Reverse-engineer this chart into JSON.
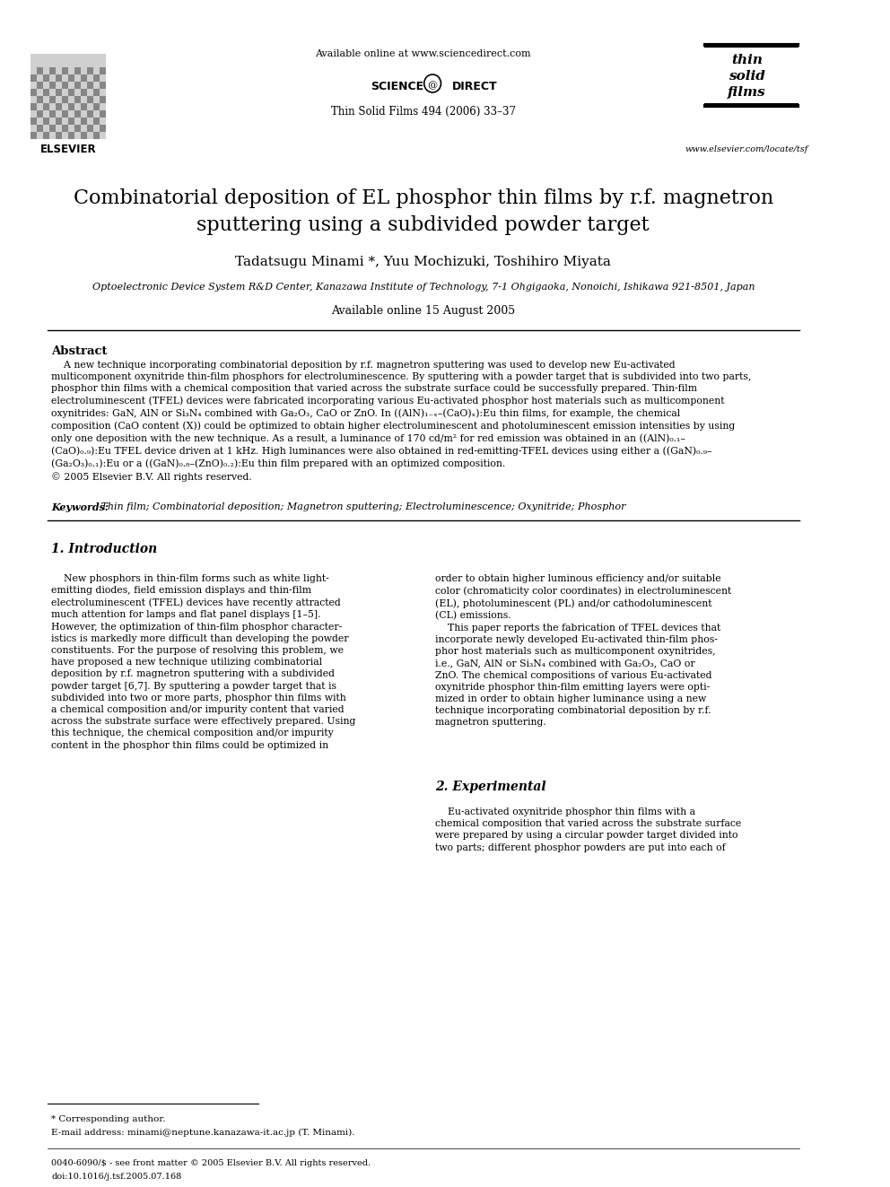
{
  "page_bg": "#ffffff",
  "header_available_online": "Available online at www.sciencedirect.com",
  "journal_name": "Thin Solid Films 494 (2006) 33–37",
  "elsevier_text": "ELSEVIER",
  "website": "www.elsevier.com/locate/tsf",
  "title_line1": "Combinatorial deposition of EL phosphor thin films by r.f. magnetron",
  "title_line2": "sputtering using a subdivided powder target",
  "authors": "Tadatsugu Minami *, Yuu Mochizuki, Toshihiro Miyata",
  "affiliation": "Optoelectronic Device System R&D Center, Kanazawa Institute of Technology, 7-1 Ohgigaoka, Nonoichi, Ishikawa 921-8501, Japan",
  "available_online_date": "Available online 15 August 2005",
  "abstract_heading": "Abstract",
  "abstract_text": "    A new technique incorporating combinatorial deposition by r.f. magnetron sputtering was used to develop new Eu-activated\nmulticomponent oxynitride thin-film phosphors for electroluminescence. By sputtering with a powder target that is subdivided into two parts,\nphosphor thin films with a chemical composition that varied across the substrate surface could be successfully prepared. Thin-film\nelectroluminescent (TFEL) devices were fabricated incorporating various Eu-activated phosphor host materials such as multicomponent\noxynitrides: GaN, AlN or Si₃N₄ combined with Ga₂O₃, CaO or ZnO. In ((AlN)₁₋ₓ–(CaO)ₓ):Eu thin films, for example, the chemical\ncomposition (CaO content (X)) could be optimized to obtain higher electroluminescent and photoluminescent emission intensities by using\nonly one deposition with the new technique. As a result, a luminance of 170 cd/m² for red emission was obtained in an ((AlN)₀.₁–\n(CaO)₀.₉):Eu TFEL device driven at 1 kHz. High luminances were also obtained in red-emitting-TFEL devices using either a ((GaN)₀.₉–\n(Ga₂O₃)₀.₁):Eu or a ((GaN)₀.₈–(ZnO)₀.₂):Eu thin film prepared with an optimized composition.\n© 2005 Elsevier B.V. All rights reserved.",
  "keywords_label": "Keywords:",
  "keywords_text": " Thin film; Combinatorial deposition; Magnetron sputtering; Electroluminescence; Oxynitride; Phosphor",
  "section1_heading": "1. Introduction",
  "section1_col1": "    New phosphors in thin-film forms such as white light-\nemitting diodes, field emission displays and thin-film\nelectroluminescent (TFEL) devices have recently attracted\nmuch attention for lamps and flat panel displays [1–5].\nHowever, the optimization of thin-film phosphor character-\nistics is markedly more difficult than developing the powder\nconstituents. For the purpose of resolving this problem, we\nhave proposed a new technique utilizing combinatorial\ndeposition by r.f. magnetron sputtering with a subdivided\npowder target [6,7]. By sputtering a powder target that is\nsubdivided into two or more parts, phosphor thin films with\na chemical composition and/or impurity content that varied\nacross the substrate surface were effectively prepared. Using\nthis technique, the chemical composition and/or impurity\ncontent in the phosphor thin films could be optimized in",
  "section1_col2": "order to obtain higher luminous efficiency and/or suitable\ncolor (chromaticity color coordinates) in electroluminescent\n(EL), photoluminescent (PL) and/or cathodoluminescent\n(CL) emissions.\n    This paper reports the fabrication of TFEL devices that\nincorporate newly developed Eu-activated thin-film phos-\nphor host materials such as multicomponent oxynitrides,\ni.e., GaN, AlN or Si₃N₄ combined with Ga₂O₃, CaO or\nZnO. The chemical compositions of various Eu-activated\noxynitride phosphor thin-film emitting layers were opti-\nmized in order to obtain higher luminance using a new\ntechnique incorporating combinatorial deposition by r.f.\nmagnetron sputtering.",
  "section2_heading": "2. Experimental",
  "section2_col2_start": "    Eu-activated oxynitride phosphor thin films with a\nchemical composition that varied across the substrate surface\nwere prepared by using a circular powder target divided into\ntwo parts; different phosphor powders are put into each of",
  "footnote_star": "* Corresponding author.",
  "footnote_email": "E-mail address: minami@neptune.kanazawa-it.ac.jp (T. Minami).",
  "footnote_issn": "0040-6090/$ - see front matter © 2005 Elsevier B.V. All rights reserved.",
  "footnote_doi": "doi:10.1016/j.tsf.2005.07.168"
}
